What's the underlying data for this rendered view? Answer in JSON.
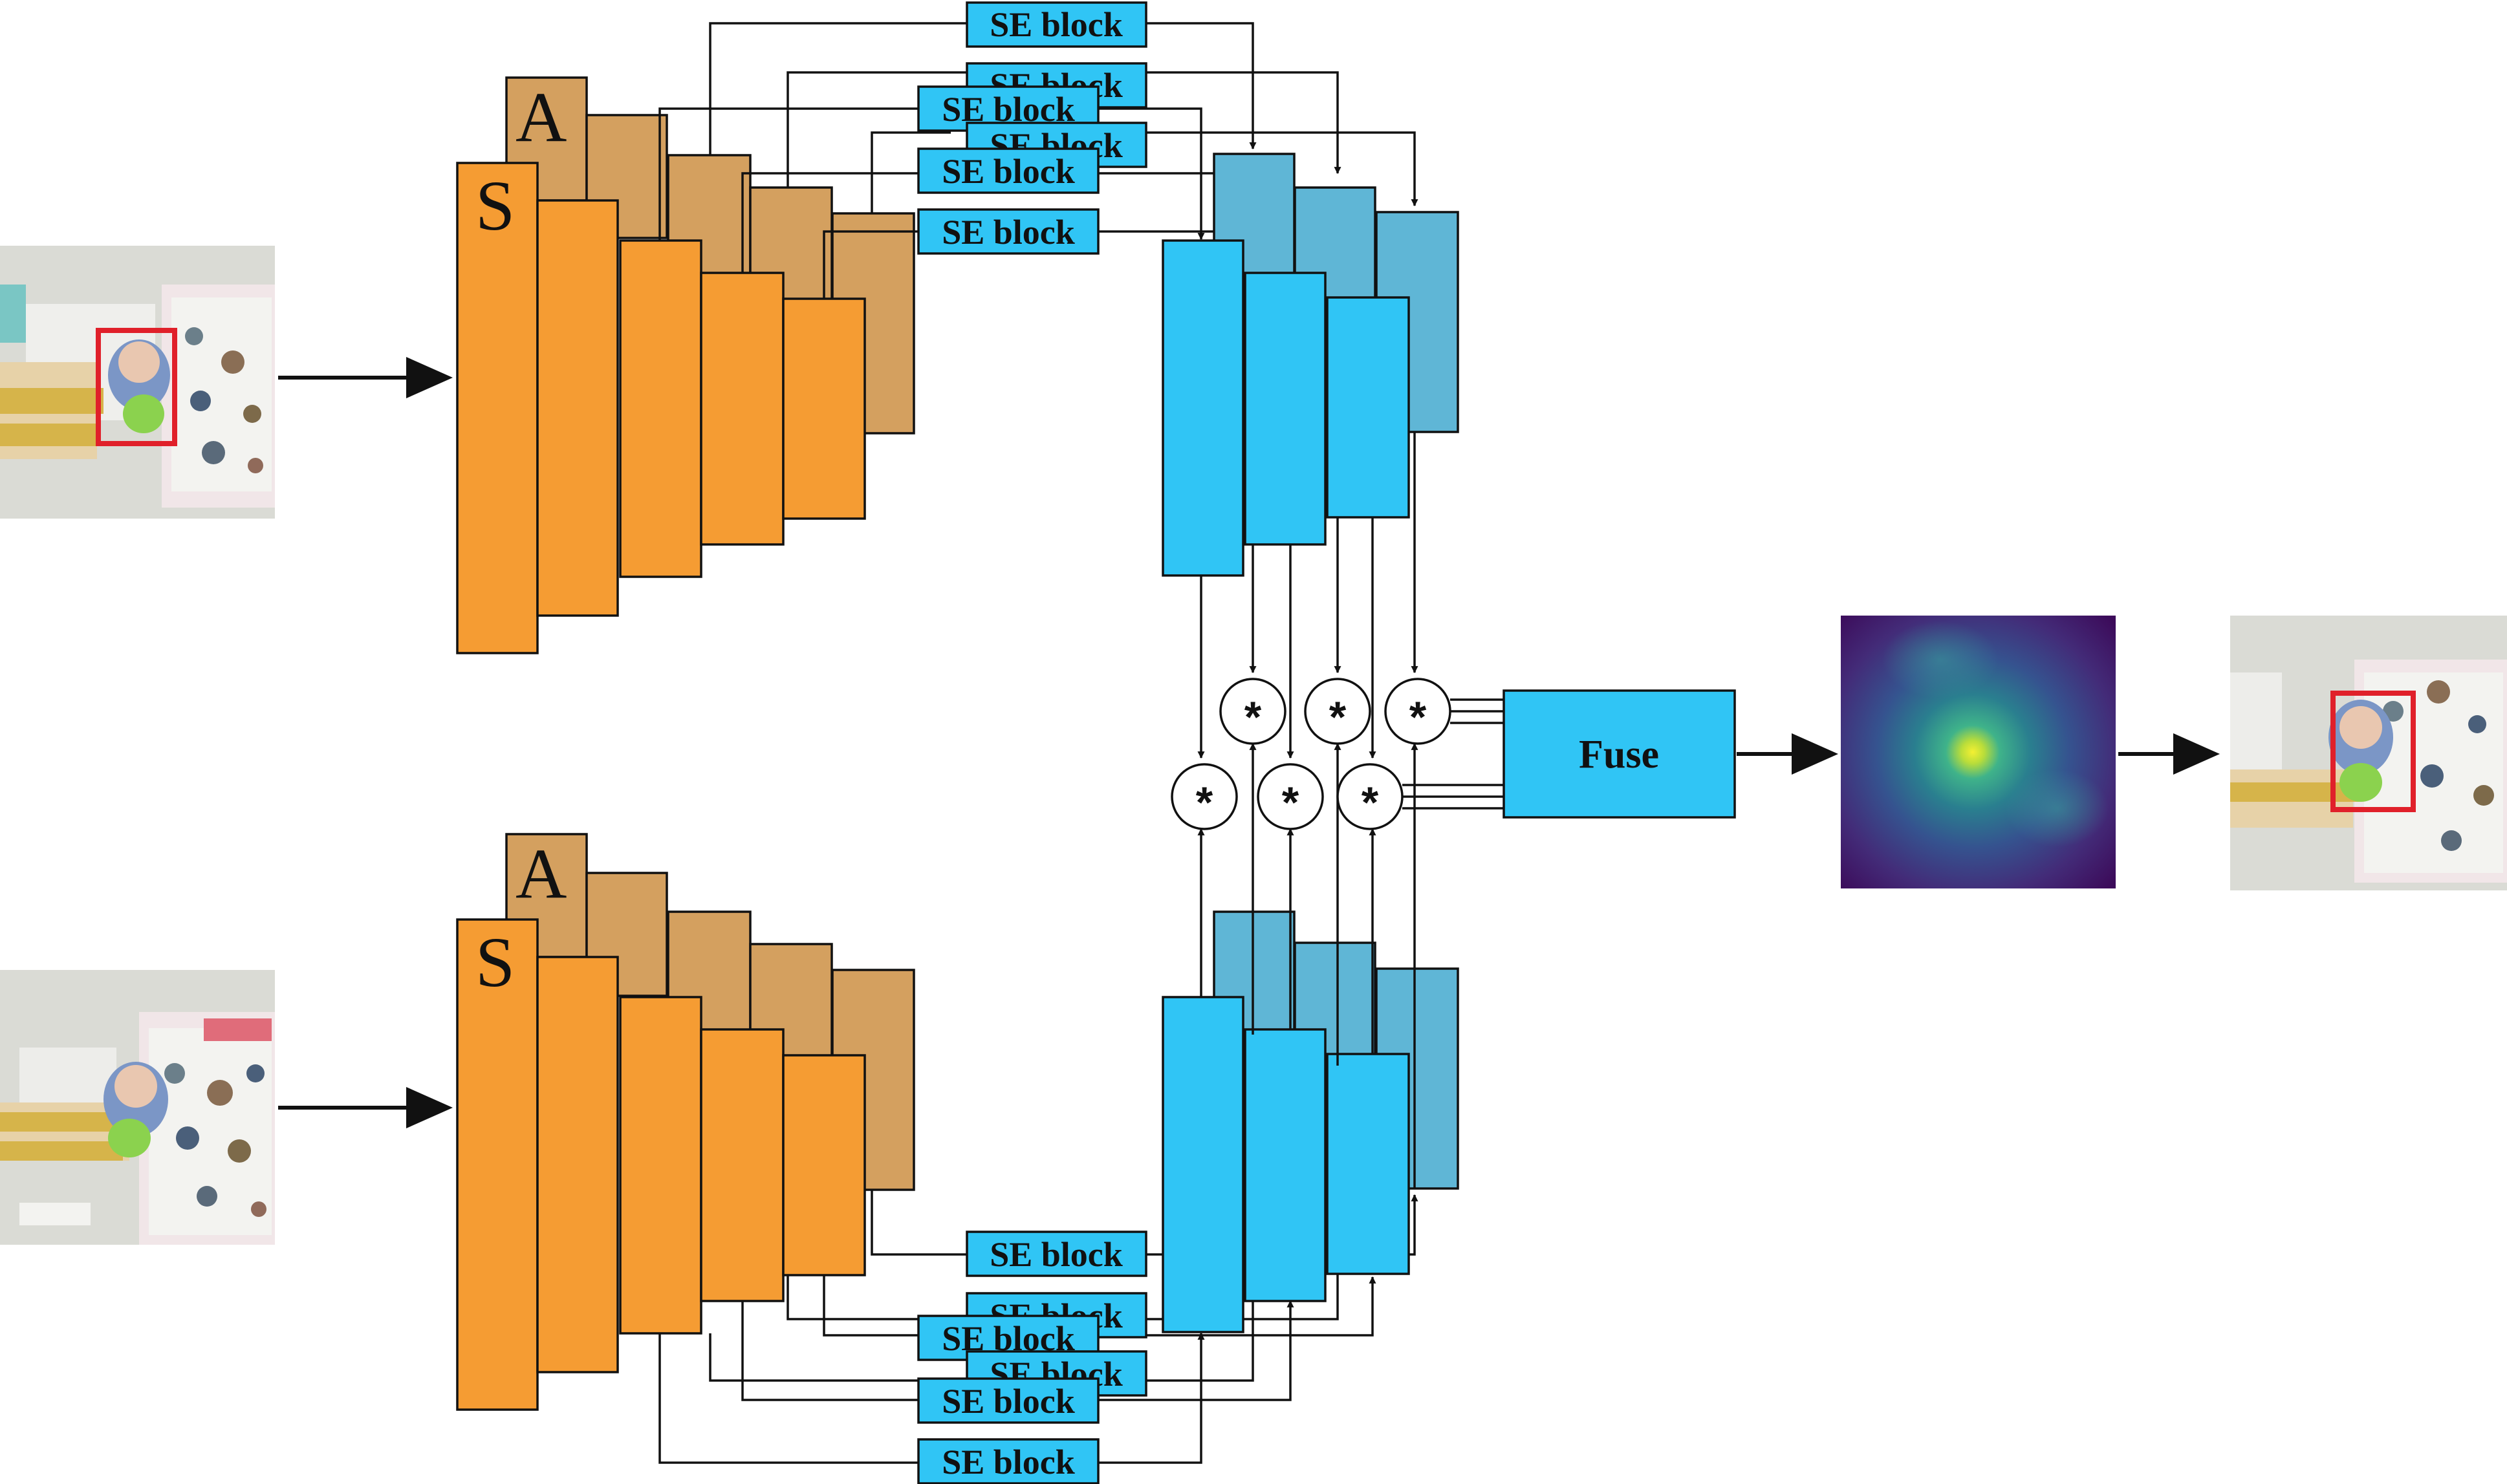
{
  "colors": {
    "rgb_block": "#f59c33",
    "aux_block": "#d4a05f",
    "blue_block": "#30c5f5",
    "blue_dark_block": "#5fb6d6",
    "se_fill": "#30c5f5",
    "tracking_box": "#e0202a"
  },
  "branches": {
    "template": {
      "label_s": "S",
      "label_a": "A"
    },
    "search": {
      "label_s": "S",
      "label_a": "A"
    }
  },
  "se_blocks": {
    "label": "SE block"
  },
  "operators": {
    "correlation_symbol": "*"
  },
  "fuse": {
    "label": "Fuse"
  },
  "images": {
    "template_frame": "template-frame-image",
    "search_frame": "search-frame-image",
    "response_map": "response-heatmap-image",
    "output_frame": "tracking-result-image"
  }
}
